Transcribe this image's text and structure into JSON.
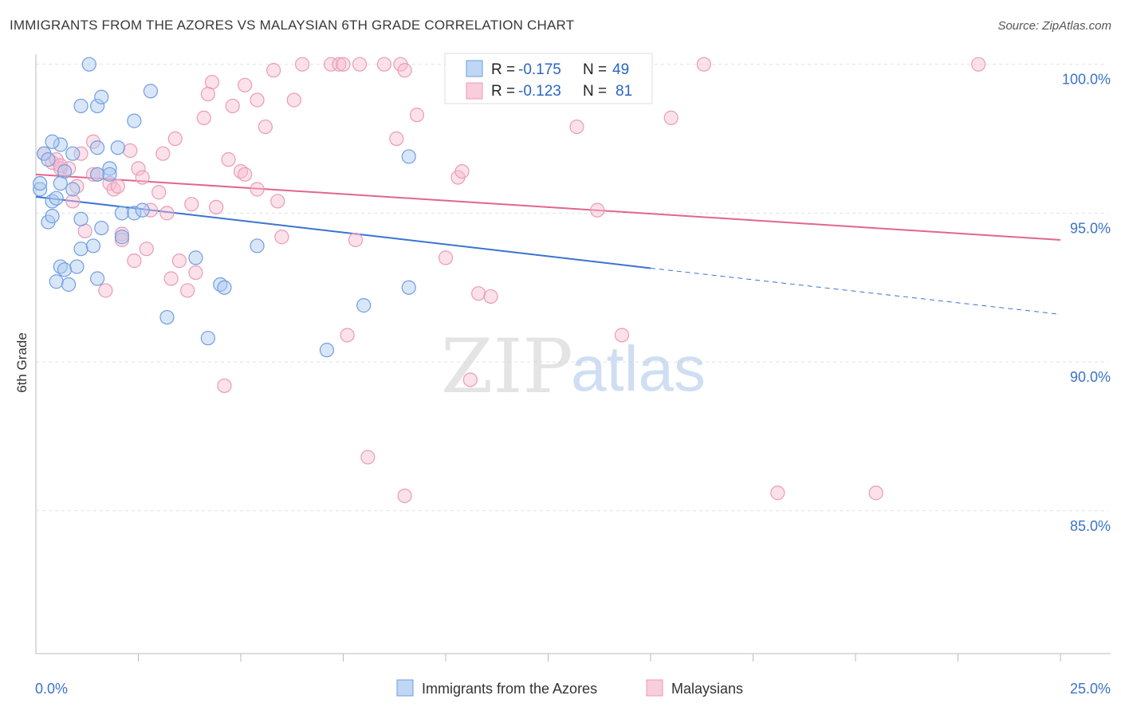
{
  "title": "IMMIGRANTS FROM THE AZORES VS MALAYSIAN 6TH GRADE CORRELATION CHART",
  "source": "Source: ZipAtlas.com",
  "watermark": {
    "zip": "ZIP",
    "atlas": "atlas"
  },
  "colors": {
    "blue": "#3b73d1",
    "blue_fill": "#aac8f0",
    "pink": "#e0668f",
    "pink_fill": "#f6bcd0",
    "axis_text": "#3b73c8",
    "grid": "#e3e3e3"
  },
  "legend": {
    "series": [
      {
        "r_label": "R =",
        "r_value": "-0.175",
        "n_label": "N =",
        "n_value": "49"
      },
      {
        "r_label": "R =",
        "r_value": "-0.123",
        "n_label": "N =",
        "n_value": "81"
      }
    ]
  },
  "bottom_legend": [
    "Immigrants from the Azores",
    "Malaysians"
  ],
  "chart_data": {
    "type": "scatter",
    "title": "IMMIGRANTS FROM THE AZORES VS MALAYSIAN 6TH GRADE CORRELATION CHART",
    "xlabel": "",
    "ylabel": "6th Grade",
    "xlim": [
      0,
      25
    ],
    "ylim": [
      80.2,
      100.5
    ],
    "x_ticks": [
      {
        "value": 0,
        "label": "0.0%"
      },
      {
        "value": 25,
        "label": "25.0%"
      }
    ],
    "y_ticks": [
      {
        "value": 100,
        "label": "100.0%"
      },
      {
        "value": 95,
        "label": "95.0%"
      },
      {
        "value": 90,
        "label": "90.0%"
      },
      {
        "value": 85,
        "label": "85.0%"
      }
    ],
    "grid": true,
    "legend_position": "top-center",
    "series": [
      {
        "name": "Immigrants from the Azores",
        "color": "#3b73d1",
        "r": -0.175,
        "n": 49,
        "trend": {
          "x0": 0,
          "y0": 95.55,
          "x1": 15,
          "y1": 93.15,
          "dashed_to_x": 25,
          "dashed_to_y": 91.6
        },
        "points": [
          [
            1.3,
            100.0
          ],
          [
            0.2,
            97.0
          ],
          [
            0.3,
            96.8
          ],
          [
            0.6,
            97.3
          ],
          [
            0.7,
            96.4
          ],
          [
            0.9,
            97.0
          ],
          [
            1.1,
            98.6
          ],
          [
            1.5,
            98.6
          ],
          [
            1.6,
            98.9
          ],
          [
            1.5,
            97.2
          ],
          [
            1.8,
            96.5
          ],
          [
            2.0,
            97.2
          ],
          [
            2.4,
            98.1
          ],
          [
            2.8,
            99.1
          ],
          [
            0.1,
            95.8
          ],
          [
            0.1,
            96.0
          ],
          [
            0.4,
            95.4
          ],
          [
            0.5,
            95.5
          ],
          [
            0.6,
            96.0
          ],
          [
            0.9,
            95.8
          ],
          [
            1.1,
            94.8
          ],
          [
            0.3,
            94.7
          ],
          [
            0.4,
            94.9
          ],
          [
            1.6,
            94.5
          ],
          [
            2.1,
            95.0
          ],
          [
            2.4,
            95.0
          ],
          [
            2.6,
            95.1
          ],
          [
            1.1,
            93.8
          ],
          [
            1.4,
            93.9
          ],
          [
            2.1,
            94.2
          ],
          [
            0.6,
            93.2
          ],
          [
            0.7,
            93.1
          ],
          [
            1.0,
            93.2
          ],
          [
            0.5,
            92.7
          ],
          [
            0.8,
            92.6
          ],
          [
            1.5,
            92.8
          ],
          [
            3.2,
            91.5
          ],
          [
            3.9,
            93.5
          ],
          [
            4.5,
            92.6
          ],
          [
            4.6,
            92.5
          ],
          [
            5.4,
            93.9
          ],
          [
            4.2,
            90.8
          ],
          [
            7.1,
            90.4
          ],
          [
            8.0,
            91.9
          ],
          [
            9.1,
            92.5
          ],
          [
            9.1,
            96.9
          ],
          [
            1.5,
            96.3
          ],
          [
            1.8,
            96.3
          ],
          [
            0.4,
            97.4
          ]
        ]
      },
      {
        "name": "Malaysians",
        "color": "#e0668f",
        "r": -0.123,
        "n": 81,
        "trend": {
          "x0": 0,
          "y0": 96.3,
          "x1": 25,
          "y1": 94.1
        },
        "points": [
          [
            6.5,
            100.0
          ],
          [
            7.2,
            100.0
          ],
          [
            7.4,
            100.0
          ],
          [
            7.5,
            100.0
          ],
          [
            7.9,
            100.0
          ],
          [
            8.5,
            100.0
          ],
          [
            8.9,
            100.0
          ],
          [
            9.0,
            99.8
          ],
          [
            11.5,
            100.0
          ],
          [
            14.0,
            100.0
          ],
          [
            16.3,
            100.0
          ],
          [
            23.0,
            100.0
          ],
          [
            4.3,
            99.4
          ],
          [
            4.2,
            99.0
          ],
          [
            5.1,
            99.3
          ],
          [
            5.4,
            98.8
          ],
          [
            4.8,
            98.6
          ],
          [
            6.3,
            98.8
          ],
          [
            5.8,
            99.8
          ],
          [
            4.1,
            98.2
          ],
          [
            5.6,
            97.9
          ],
          [
            9.3,
            98.3
          ],
          [
            13.2,
            97.9
          ],
          [
            15.5,
            98.2
          ],
          [
            8.8,
            97.5
          ],
          [
            3.4,
            97.5
          ],
          [
            1.4,
            97.4
          ],
          [
            2.3,
            97.1
          ],
          [
            3.1,
            97.0
          ],
          [
            0.2,
            97.0
          ],
          [
            0.4,
            96.7
          ],
          [
            0.5,
            96.8
          ],
          [
            0.6,
            96.5
          ],
          [
            0.8,
            96.5
          ],
          [
            1.1,
            97.0
          ],
          [
            1.4,
            96.3
          ],
          [
            1.5,
            96.3
          ],
          [
            1.8,
            96.0
          ],
          [
            2.5,
            96.5
          ],
          [
            2.6,
            96.2
          ],
          [
            4.7,
            96.8
          ],
          [
            5.0,
            96.4
          ],
          [
            5.1,
            96.3
          ],
          [
            10.3,
            96.2
          ],
          [
            10.4,
            96.4
          ],
          [
            0.6,
            96.6
          ],
          [
            1.0,
            95.9
          ],
          [
            1.9,
            95.8
          ],
          [
            2.0,
            95.9
          ],
          [
            3.0,
            95.7
          ],
          [
            5.4,
            95.8
          ],
          [
            0.9,
            95.4
          ],
          [
            3.8,
            95.3
          ],
          [
            4.4,
            95.2
          ],
          [
            5.9,
            95.4
          ],
          [
            2.8,
            95.1
          ],
          [
            3.2,
            95.0
          ],
          [
            13.7,
            95.1
          ],
          [
            2.1,
            94.3
          ],
          [
            2.1,
            94.1
          ],
          [
            1.2,
            94.4
          ],
          [
            2.7,
            93.8
          ],
          [
            6.0,
            94.2
          ],
          [
            7.8,
            94.1
          ],
          [
            2.4,
            93.4
          ],
          [
            3.5,
            93.4
          ],
          [
            3.3,
            92.8
          ],
          [
            3.9,
            93.0
          ],
          [
            1.7,
            92.4
          ],
          [
            3.7,
            92.4
          ],
          [
            10.0,
            93.5
          ],
          [
            10.8,
            92.3
          ],
          [
            11.1,
            92.2
          ],
          [
            7.6,
            90.9
          ],
          [
            14.3,
            90.9
          ],
          [
            4.6,
            89.2
          ],
          [
            10.6,
            89.4
          ],
          [
            8.1,
            86.8
          ],
          [
            9.0,
            85.5
          ],
          [
            18.1,
            85.6
          ],
          [
            20.5,
            85.6
          ]
        ]
      }
    ]
  }
}
